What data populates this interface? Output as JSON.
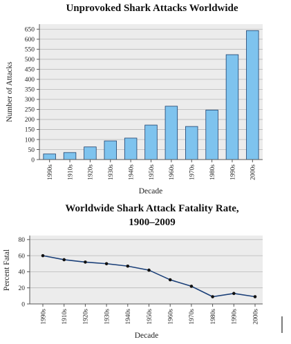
{
  "chart_data": [
    {
      "type": "bar",
      "title": "Unprovoked Shark Attacks Worldwide",
      "xlabel": "Decade",
      "ylabel": "Number of Attacks",
      "categories": [
        "1990s",
        "1910s",
        "1920s",
        "1930s",
        "1940s",
        "1950s",
        "1960s",
        "1970s",
        "1980s",
        "1990s",
        "2000s"
      ],
      "values": [
        28,
        35,
        63,
        93,
        107,
        172,
        266,
        165,
        247,
        523,
        643
      ],
      "ylim": [
        0,
        675
      ],
      "yticks": [
        0,
        50,
        100,
        150,
        200,
        250,
        300,
        350,
        400,
        450,
        500,
        550,
        600,
        650
      ],
      "bar_color": "#7ec3ee",
      "grid": true
    },
    {
      "type": "line",
      "title_lines": [
        "Worldwide Shark Attack Fatality Rate,",
        "1900–2009"
      ],
      "xlabel": "Decade",
      "ylabel": "Percent Fatal",
      "categories": [
        "1990s",
        "1910s",
        "1920s",
        "1930s",
        "1940s",
        "1950s",
        "1960s",
        "1970s",
        "1980s",
        "1990s",
        "2000s"
      ],
      "values": [
        60,
        55,
        52,
        50,
        47,
        42,
        30,
        22,
        9,
        13,
        9
      ],
      "ylim": [
        0,
        85
      ],
      "yticks": [
        0,
        20,
        40,
        60,
        80
      ],
      "line_color": "#1a3f78",
      "grid": true
    }
  ]
}
